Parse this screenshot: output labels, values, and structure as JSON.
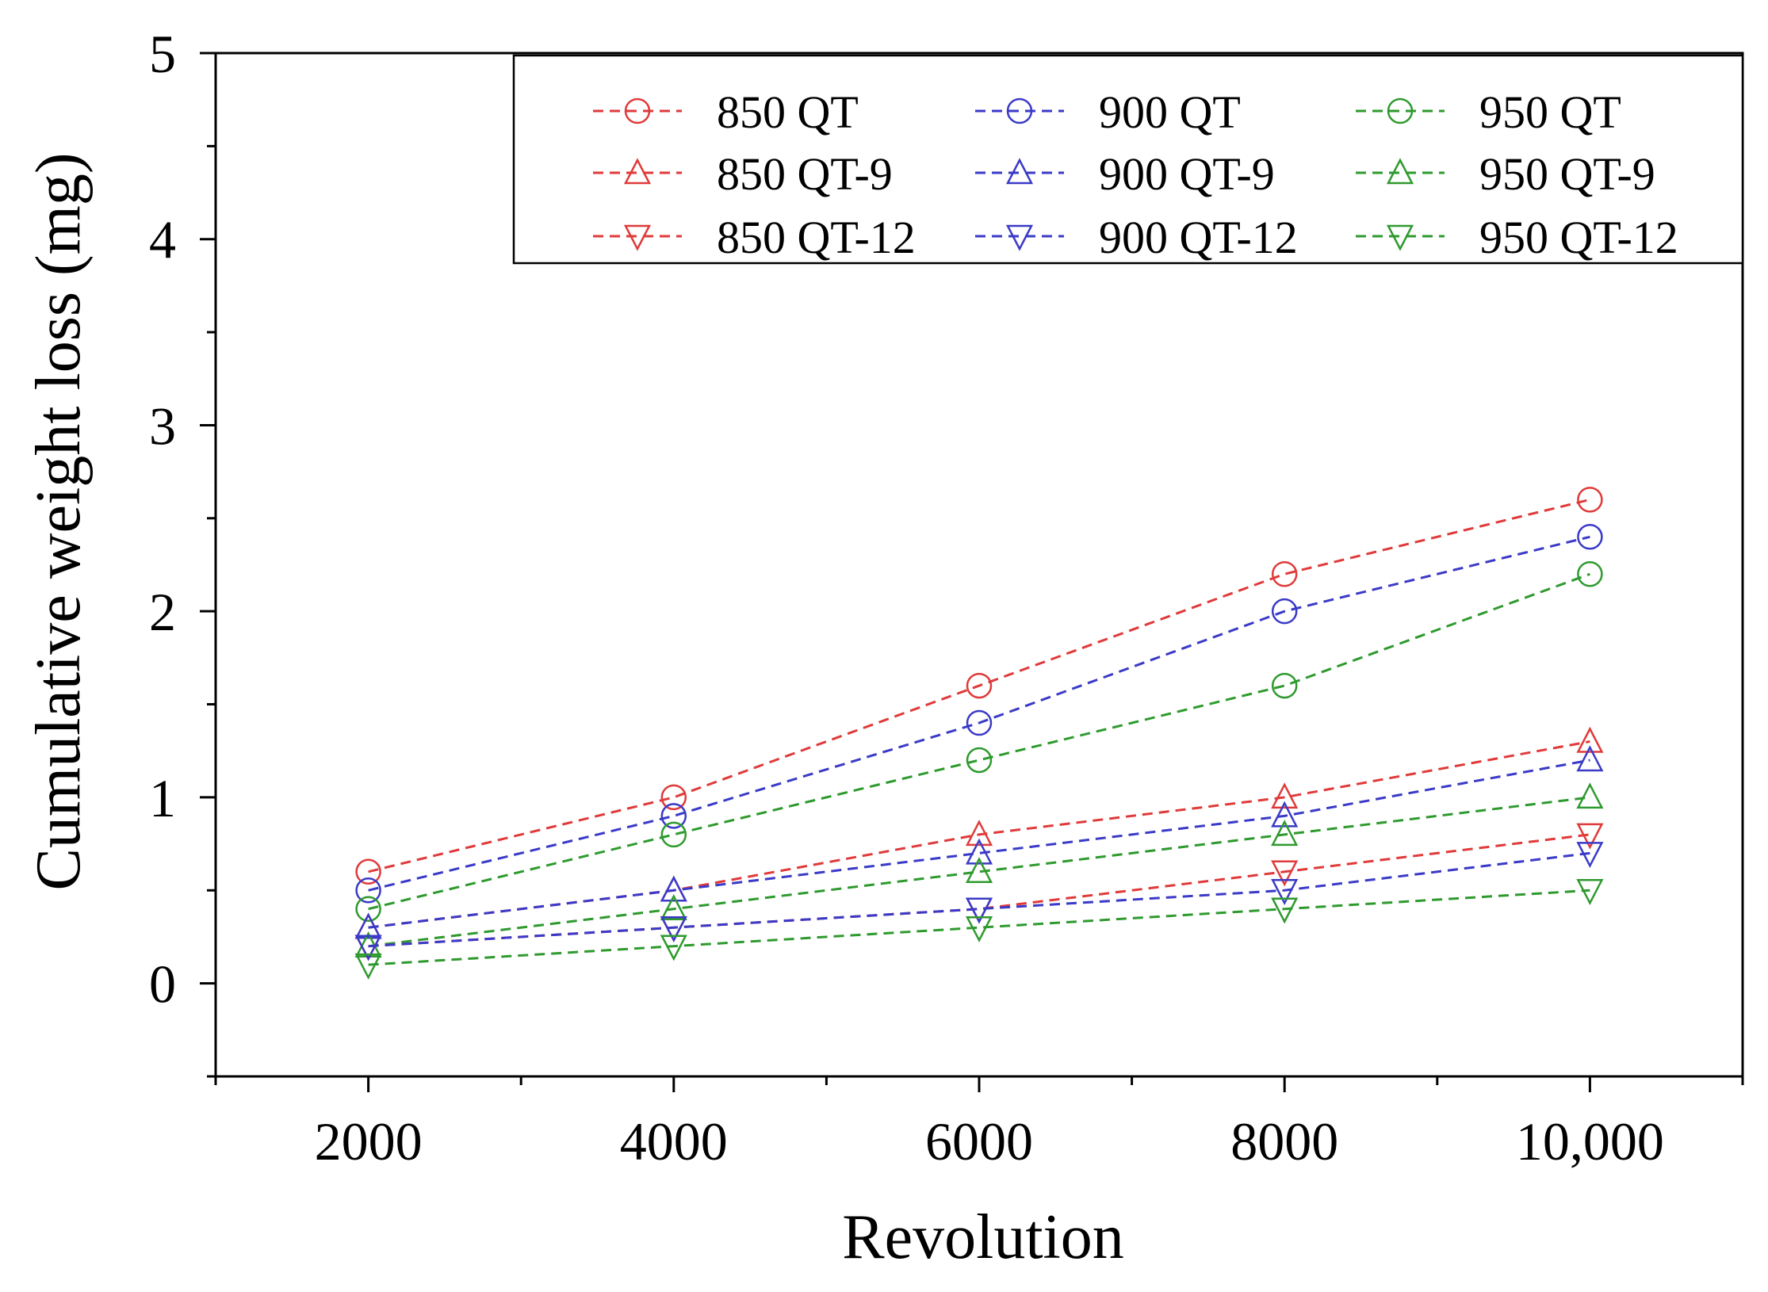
{
  "chart_data": {
    "type": "line",
    "title": "",
    "xlabel": "Revolution",
    "ylabel": "Cumulative weight loss (mg)",
    "xlim": [
      1000,
      11000
    ],
    "ylim": [
      -0.5,
      5
    ],
    "x_ticks": [
      {
        "value": 2000,
        "label": "2000"
      },
      {
        "value": 4000,
        "label": "4000"
      },
      {
        "value": 6000,
        "label": "6000"
      },
      {
        "value": 8000,
        "label": "8000"
      },
      {
        "value": 10000,
        "label": "10,000"
      }
    ],
    "y_ticks": [
      {
        "value": 0,
        "label": "0"
      },
      {
        "value": 1,
        "label": "1"
      },
      {
        "value": 2,
        "label": "2"
      },
      {
        "value": 3,
        "label": "3"
      },
      {
        "value": 4,
        "label": "4"
      },
      {
        "value": 5,
        "label": "5"
      }
    ],
    "grid": false,
    "legend_position": "top-right",
    "x": [
      2000,
      4000,
      6000,
      8000,
      10000
    ],
    "series": [
      {
        "name": "850 QT",
        "color": "#e03a3a",
        "marker": "circle",
        "values": [
          0.6,
          1.0,
          1.6,
          2.2,
          2.6
        ]
      },
      {
        "name": "900 QT",
        "color": "#3a3ac8",
        "marker": "circle",
        "values": [
          0.5,
          0.9,
          1.4,
          2.0,
          2.4
        ]
      },
      {
        "name": "950 QT",
        "color": "#2e9a2e",
        "marker": "circle",
        "values": [
          0.4,
          0.8,
          1.2,
          1.6,
          2.2
        ]
      },
      {
        "name": "850 QT-9",
        "color": "#e03a3a",
        "marker": "triangle-up",
        "values": [
          0.3,
          0.5,
          0.8,
          1.0,
          1.3
        ]
      },
      {
        "name": "900 QT-9",
        "color": "#3a3ac8",
        "marker": "triangle-up",
        "values": [
          0.3,
          0.5,
          0.7,
          0.9,
          1.2
        ]
      },
      {
        "name": "950 QT-9",
        "color": "#2e9a2e",
        "marker": "triangle-up",
        "values": [
          0.2,
          0.4,
          0.6,
          0.8,
          1.0
        ]
      },
      {
        "name": "850 QT-12",
        "color": "#e03a3a",
        "marker": "triangle-down",
        "values": [
          0.2,
          0.3,
          0.4,
          0.6,
          0.8
        ]
      },
      {
        "name": "900 QT-12",
        "color": "#3a3ac8",
        "marker": "triangle-down",
        "values": [
          0.2,
          0.3,
          0.4,
          0.5,
          0.7
        ]
      },
      {
        "name": "950 QT-12",
        "color": "#2e9a2e",
        "marker": "triangle-down",
        "values": [
          0.1,
          0.2,
          0.3,
          0.4,
          0.5
        ]
      }
    ]
  }
}
